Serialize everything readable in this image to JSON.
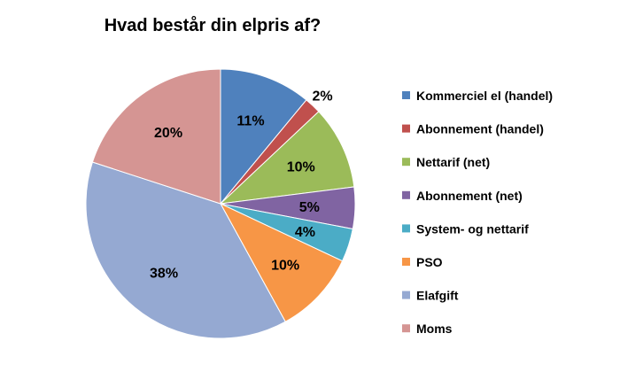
{
  "chart_data": {
    "type": "pie",
    "title": "Hvad består din elpris af?",
    "legend_position": "right",
    "slices": [
      {
        "label": "Kommerciel el (handel)",
        "value": 11,
        "display": "11%",
        "color": "#4F81BD"
      },
      {
        "label": "Abonnement (handel)",
        "value": 2,
        "display": "2%",
        "color": "#C0504D"
      },
      {
        "label": "Nettarif (net)",
        "value": 10,
        "display": "10%",
        "color": "#9BBB59"
      },
      {
        "label": "Abonnement (net)",
        "value": 5,
        "display": "5%",
        "color": "#8064A2"
      },
      {
        "label": "System- og nettarif",
        "value": 4,
        "display": "4%",
        "color": "#4BACC6"
      },
      {
        "label": "PSO",
        "value": 10,
        "display": "10%",
        "color": "#F79646"
      },
      {
        "label": "Elafgift",
        "value": 38,
        "display": "38%",
        "color": "#95A9D2"
      },
      {
        "label": "Moms",
        "value": 20,
        "display": "20%",
        "color": "#D59593"
      }
    ]
  }
}
